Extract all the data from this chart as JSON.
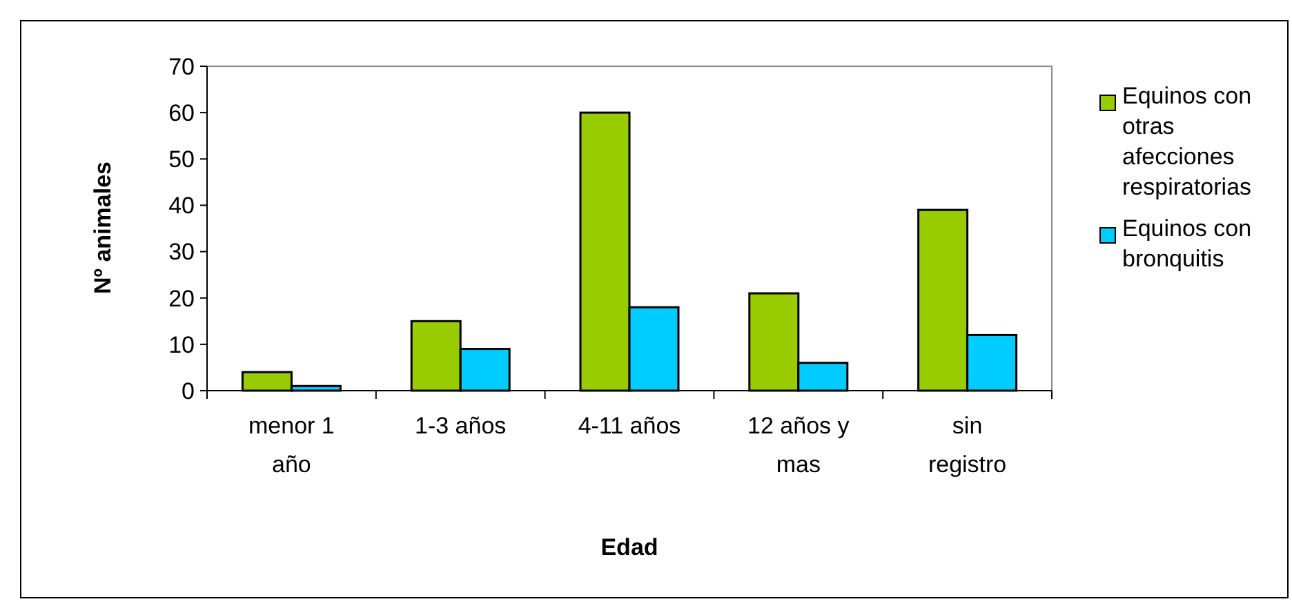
{
  "chart_data": {
    "type": "bar",
    "xlabel": "Edad",
    "ylabel": "Nº animales",
    "categories": [
      "menor 1 año",
      "1-3 años",
      "4-11 años",
      "12 años y mas",
      "sin registro"
    ],
    "series": [
      {
        "name": "Equinos con otras afecciones respiratorias",
        "color": "#99cc00",
        "values": [
          4,
          15,
          60,
          21,
          39
        ]
      },
      {
        "name": "Equinos con bronquitis",
        "color": "#00ccff",
        "values": [
          1,
          9,
          18,
          6,
          12
        ]
      }
    ],
    "ylim": [
      0,
      70
    ],
    "yticks": [
      0,
      10,
      20,
      30,
      40,
      50,
      60,
      70
    ],
    "grid": false,
    "legend": "right"
  }
}
